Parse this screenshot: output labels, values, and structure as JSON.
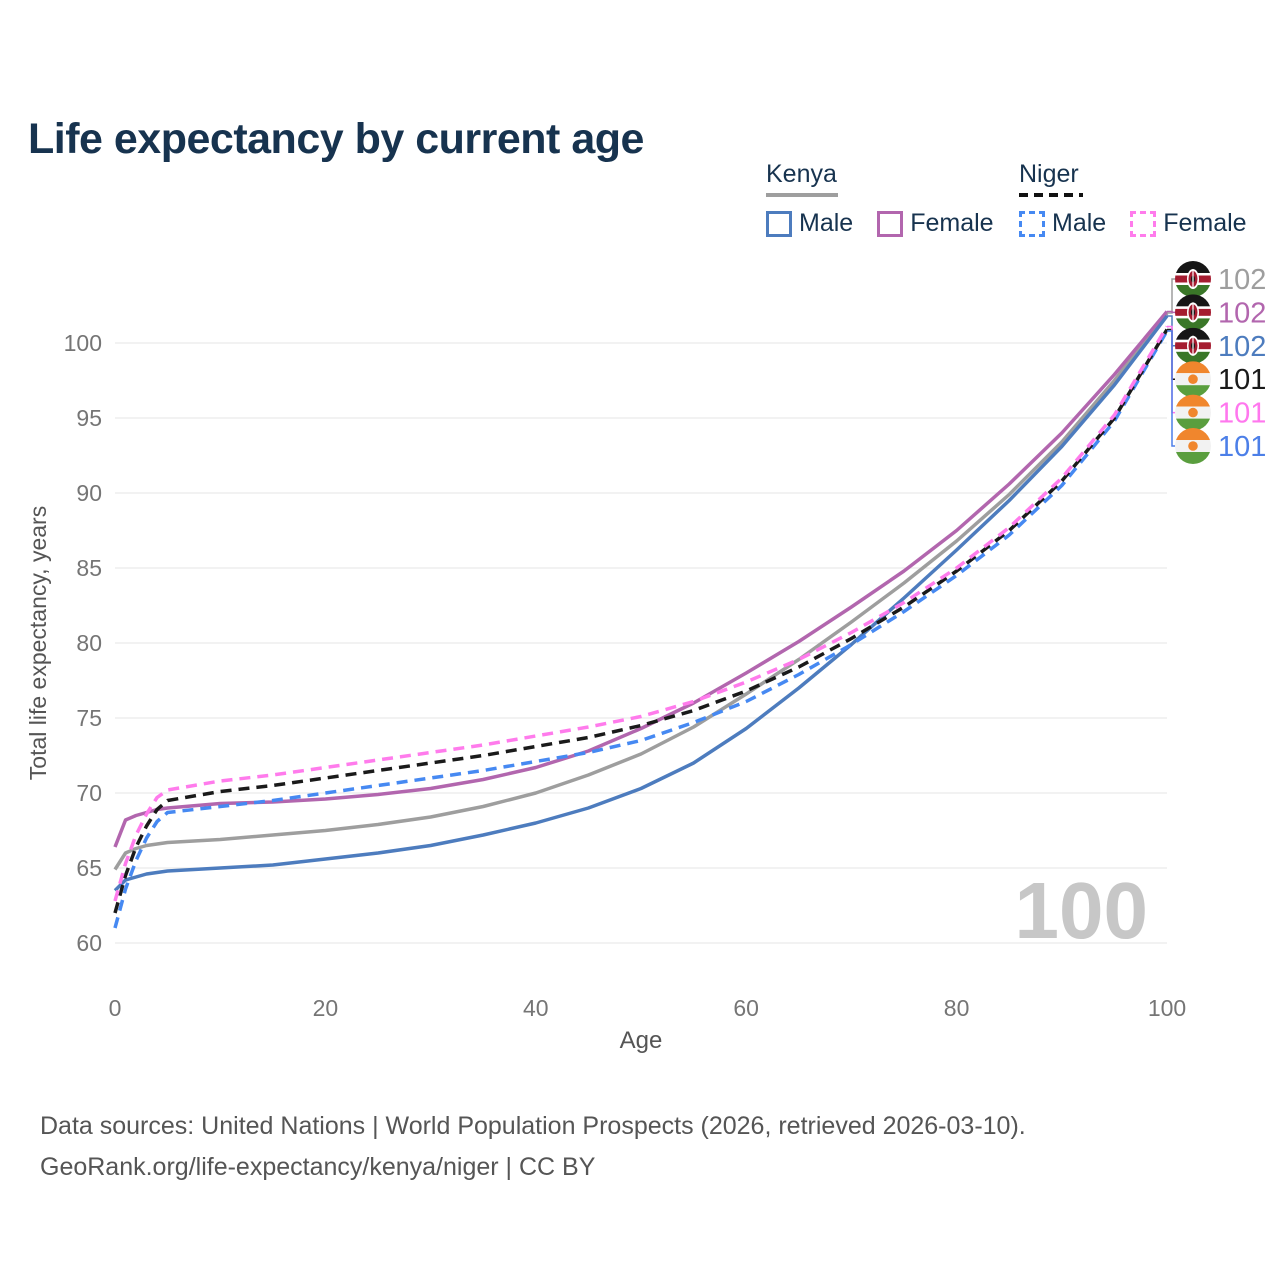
{
  "title": "Life expectancy by current age",
  "legend": {
    "groups": [
      {
        "name": "Kenya",
        "underline_style": "solid",
        "underline_color": "#9e9e9e",
        "items": [
          {
            "label": "Male",
            "color": "#4d7cbe",
            "dashed": false
          },
          {
            "label": "Female",
            "color": "#b266ae",
            "dashed": false
          }
        ]
      },
      {
        "name": "Niger",
        "underline_style": "dashed",
        "underline_color": "#111111",
        "items": [
          {
            "label": "Male",
            "color": "#4689f2",
            "dashed": true
          },
          {
            "label": "Female",
            "color": "#ff7bec",
            "dashed": true
          }
        ]
      }
    ]
  },
  "chart_data": {
    "type": "line",
    "title": "Life expectancy by current age",
    "xlabel": "Age",
    "ylabel": "Total life expectancy, years",
    "xlim": [
      0,
      100
    ],
    "ylim": [
      60,
      103
    ],
    "x_ticks": [
      0,
      20,
      40,
      60,
      80,
      100
    ],
    "y_ticks": [
      60,
      65,
      70,
      75,
      80,
      85,
      90,
      95,
      100
    ],
    "grid": true,
    "legend_position": "top-right",
    "x": [
      0,
      1,
      2,
      3,
      4,
      5,
      10,
      15,
      20,
      25,
      30,
      35,
      40,
      45,
      50,
      55,
      60,
      65,
      70,
      75,
      80,
      85,
      90,
      95,
      100
    ],
    "series": [
      {
        "key": "kenya_total",
        "name": "Kenya Both sexes",
        "color": "#9e9e9e",
        "dashed": false,
        "values": [
          64.9,
          66.0,
          66.3,
          66.5,
          66.6,
          66.7,
          66.9,
          67.2,
          67.5,
          67.9,
          68.4,
          69.1,
          70.0,
          71.2,
          72.6,
          74.4,
          76.6,
          78.9,
          81.4,
          84.0,
          86.8,
          89.9,
          93.4,
          97.5,
          102.0
        ]
      },
      {
        "key": "kenya_female",
        "name": "Kenya Female",
        "color": "#b266ae",
        "dashed": false,
        "values": [
          66.4,
          68.2,
          68.5,
          68.7,
          68.9,
          69.0,
          69.3,
          69.4,
          69.6,
          69.9,
          70.3,
          70.9,
          71.7,
          72.8,
          74.3,
          76.0,
          78.0,
          80.1,
          82.4,
          84.8,
          87.5,
          90.6,
          94.0,
          97.9,
          102.1
        ]
      },
      {
        "key": "kenya_male",
        "name": "Kenya Male",
        "color": "#4d7cbe",
        "dashed": false,
        "values": [
          63.5,
          64.2,
          64.4,
          64.6,
          64.7,
          64.8,
          65.0,
          65.2,
          65.6,
          66.0,
          66.5,
          67.2,
          68.0,
          69.0,
          70.3,
          72.0,
          74.3,
          77.0,
          79.9,
          83.0,
          86.2,
          89.5,
          93.1,
          97.2,
          101.8
        ]
      },
      {
        "key": "niger_male",
        "name": "Niger Male",
        "color": "#4689f2",
        "dashed": true,
        "values": [
          61.0,
          63.6,
          65.5,
          67.0,
          68.1,
          68.7,
          69.1,
          69.5,
          70.0,
          70.5,
          71.0,
          71.5,
          72.1,
          72.7,
          73.5,
          74.7,
          76.1,
          77.9,
          79.9,
          82.1,
          84.5,
          87.2,
          90.5,
          94.8,
          100.8
        ]
      },
      {
        "key": "niger_total",
        "name": "Niger Both sexes",
        "color": "#1a1a1a",
        "dashed": true,
        "values": [
          62.0,
          64.5,
          66.4,
          67.8,
          68.9,
          69.5,
          70.1,
          70.5,
          71.0,
          71.5,
          72.0,
          72.5,
          73.1,
          73.7,
          74.5,
          75.5,
          76.8,
          78.4,
          80.3,
          82.4,
          84.8,
          87.5,
          90.8,
          95.0,
          100.9
        ]
      },
      {
        "key": "niger_female",
        "name": "Niger Female",
        "color": "#ff7bec",
        "dashed": true,
        "values": [
          62.8,
          65.3,
          67.2,
          68.6,
          69.7,
          70.2,
          70.8,
          71.2,
          71.7,
          72.2,
          72.7,
          73.2,
          73.8,
          74.4,
          75.1,
          76.1,
          77.4,
          78.9,
          80.7,
          82.7,
          85.0,
          87.7,
          91.0,
          95.2,
          101.1
        ]
      }
    ],
    "end_labels": [
      {
        "series": "kenya_total",
        "flag": "kenya",
        "value": "102",
        "color": "#9e9e9e"
      },
      {
        "series": "kenya_female",
        "flag": "kenya",
        "value": "102",
        "color": "#b266ae"
      },
      {
        "series": "kenya_male",
        "flag": "kenya",
        "value": "102",
        "color": "#4d7cbe"
      },
      {
        "series": "niger_total",
        "flag": "niger",
        "value": "101",
        "color": "#1a1a1a"
      },
      {
        "series": "niger_female",
        "flag": "niger",
        "value": "101",
        "color": "#ff77ee"
      },
      {
        "series": "niger_male",
        "flag": "niger",
        "value": "101",
        "color": "#4c7fe8"
      }
    ]
  },
  "watermark": "100",
  "footer": {
    "line1": "Data sources: United Nations | World Population Prospects (2026, retrieved 2026-03-10).",
    "line2": "GeoRank.org/life-expectancy/kenya/niger | CC BY"
  }
}
